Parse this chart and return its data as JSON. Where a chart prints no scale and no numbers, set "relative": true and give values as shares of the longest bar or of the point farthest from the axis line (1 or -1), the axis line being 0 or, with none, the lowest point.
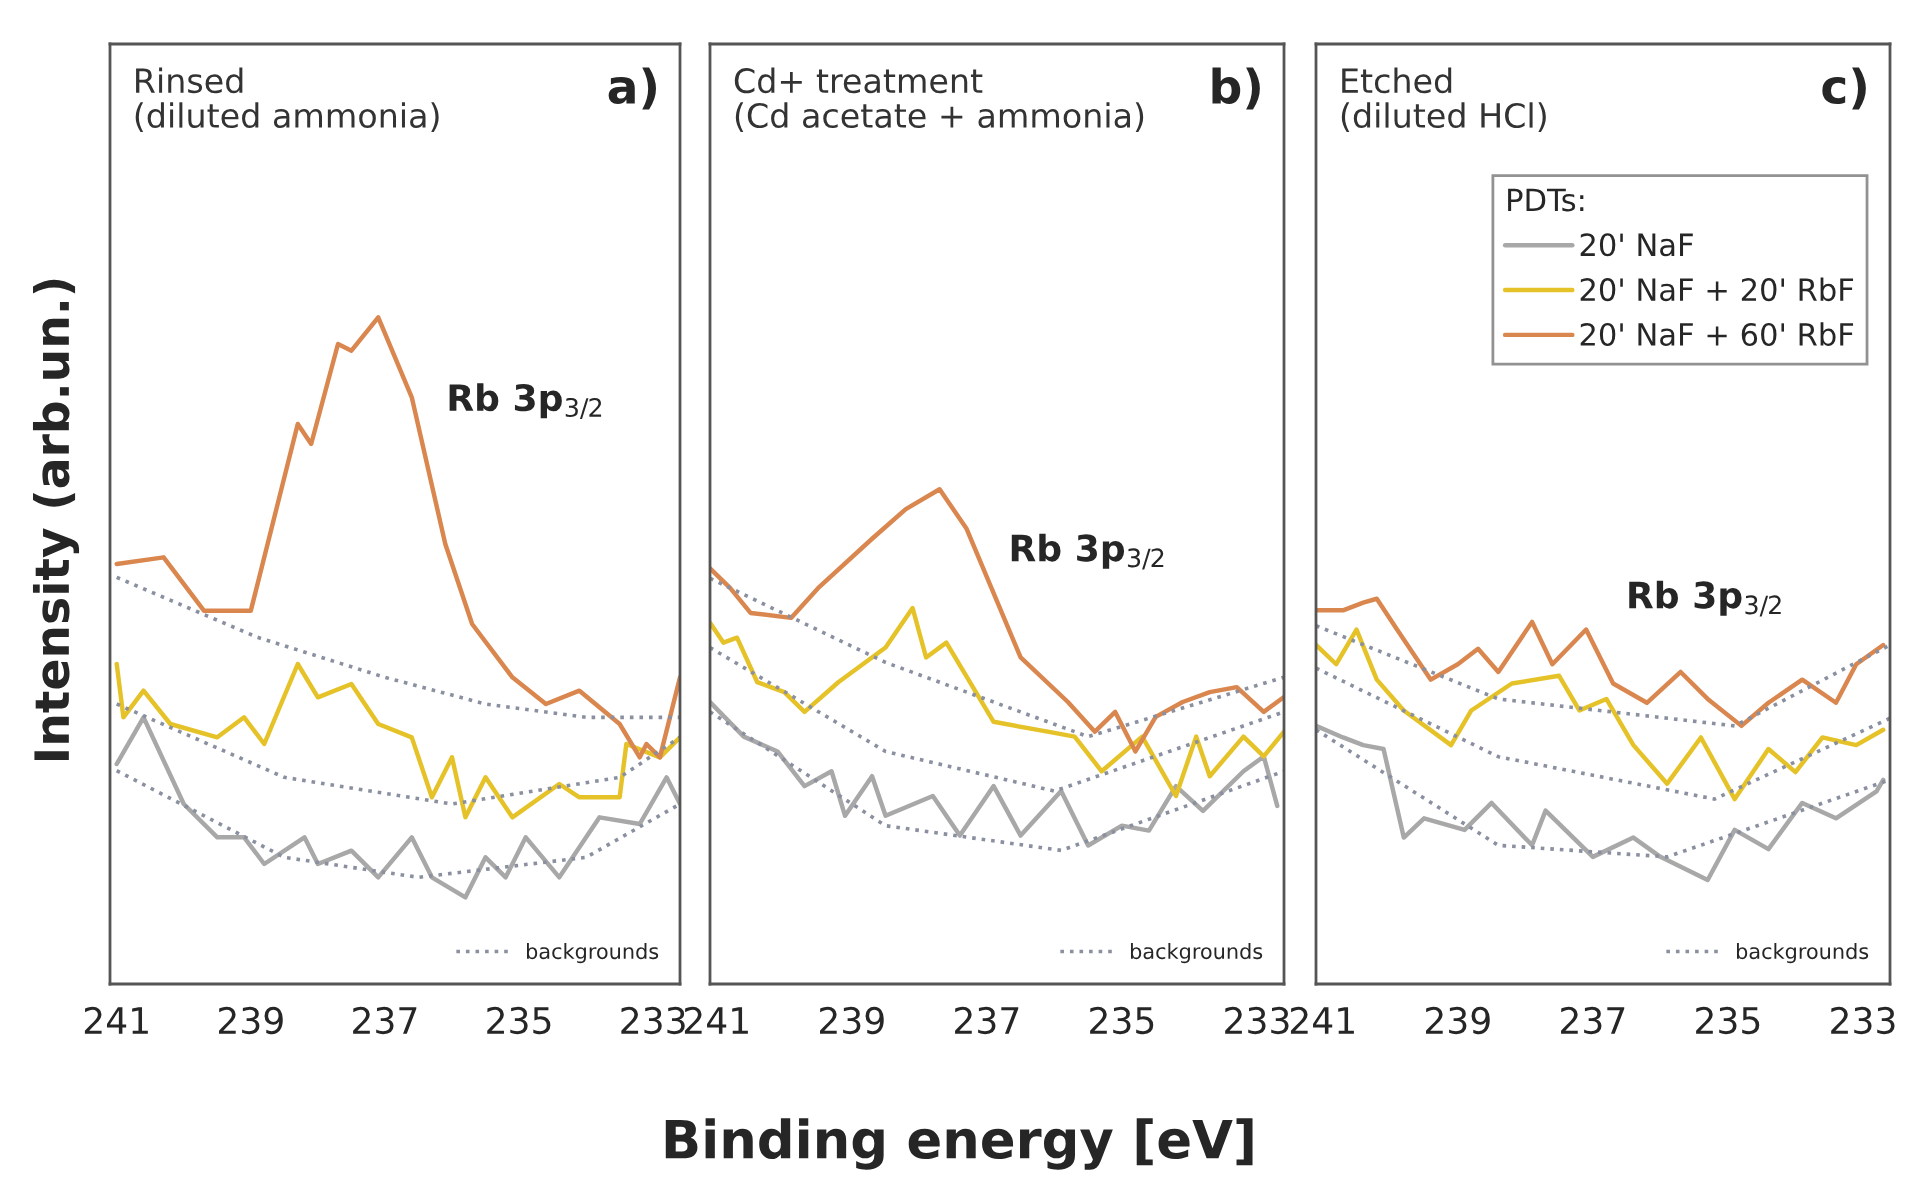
{
  "chart_data": [
    {
      "type": "line",
      "relative": true,
      "xlabel": "Binding energy [eV]",
      "ylabel": "Intensity (arb.un.)",
      "xlim": [
        241.1,
        232.6
      ],
      "xticks": [
        241,
        239,
        237,
        235,
        233
      ],
      "grid": false,
      "legend": "bottom right",
      "annotations": [
        "Rinsed\n(diluted ammonia)",
        "a)",
        "Rb 3p$_{3/2}$"
      ],
      "series": [
        {
          "color": "#a8a8a8",
          "line_style": "solid",
          "x": [
            241.0,
            240.6,
            240.0,
            239.5,
            239.1,
            238.8,
            238.2,
            238.0,
            237.5,
            237.1,
            236.6,
            236.3,
            235.8,
            235.5,
            235.2,
            234.9,
            234.4,
            233.8,
            233.2,
            232.8,
            232.6
          ],
          "values": [
            0.33,
            0.4,
            0.27,
            0.22,
            0.22,
            0.18,
            0.22,
            0.18,
            0.2,
            0.16,
            0.22,
            0.16,
            0.13,
            0.19,
            0.16,
            0.22,
            0.16,
            0.25,
            0.24,
            0.31,
            0.27
          ]
        },
        {
          "color": "#e6c229",
          "line_style": "solid",
          "x": [
            241.0,
            240.9,
            240.6,
            240.2,
            239.5,
            239.1,
            238.8,
            238.3,
            238.0,
            237.5,
            237.1,
            236.6,
            236.3,
            236.0,
            235.8,
            235.5,
            235.1,
            234.4,
            234.1,
            233.5,
            233.4,
            232.9,
            232.6
          ],
          "values": [
            0.48,
            0.4,
            0.44,
            0.39,
            0.37,
            0.4,
            0.36,
            0.48,
            0.43,
            0.45,
            0.39,
            0.37,
            0.28,
            0.34,
            0.25,
            0.31,
            0.25,
            0.3,
            0.28,
            0.28,
            0.36,
            0.34,
            0.37
          ]
        },
        {
          "color": "#d9874f",
          "line_style": "solid",
          "x": [
            241.0,
            240.3,
            239.7,
            239.0,
            238.3,
            238.1,
            237.7,
            237.5,
            237.1,
            236.6,
            236.1,
            235.7,
            235.1,
            234.6,
            234.1,
            233.5,
            233.2,
            233.1,
            232.9,
            232.6
          ],
          "values": [
            0.63,
            0.64,
            0.56,
            0.56,
            0.84,
            0.81,
            0.96,
            0.95,
            1.0,
            0.88,
            0.66,
            0.54,
            0.46,
            0.42,
            0.44,
            0.39,
            0.34,
            0.36,
            0.34,
            0.46
          ]
        },
        {
          "name": "backgrounds",
          "color": "#8a90a0",
          "line_style": "dotted",
          "x": [
            241.0,
            238.9,
            237.0,
            235.5,
            234.0,
            232.6
          ],
          "values": [
            0.61,
            0.52,
            0.46,
            0.42,
            0.4,
            0.4
          ]
        },
        {
          "color": "#8a90a0",
          "line_style": "dotted",
          "x": [
            241.0,
            238.5,
            236.0,
            233.5,
            232.6
          ],
          "values": [
            0.42,
            0.31,
            0.27,
            0.31,
            0.37
          ]
        },
        {
          "color": "#8a90a0",
          "line_style": "dotted",
          "x": [
            241.0,
            238.5,
            236.5,
            234.0,
            232.6
          ],
          "values": [
            0.32,
            0.19,
            0.16,
            0.19,
            0.27
          ]
        }
      ]
    },
    {
      "type": "line",
      "relative": true,
      "xlim": [
        241.1,
        232.6
      ],
      "xticks": [
        241,
        239,
        237,
        235,
        233
      ],
      "grid": false,
      "legend": "bottom right",
      "annotations": [
        "Cd+ treatment\n(Cd acetate + ammonia)",
        "b)",
        "Rb 3p$_{3/2}$"
      ],
      "series": [
        {
          "color": "#a8a8a8",
          "line_style": "solid",
          "x": [
            241.1,
            240.6,
            240.1,
            239.7,
            239.3,
            239.1,
            238.7,
            238.5,
            237.8,
            237.4,
            236.9,
            236.5,
            235.9,
            235.5,
            235.0,
            234.6,
            234.2,
            233.8,
            233.2,
            232.9,
            232.7
          ],
          "values": [
            0.57,
            0.5,
            0.47,
            0.4,
            0.43,
            0.34,
            0.42,
            0.34,
            0.38,
            0.3,
            0.4,
            0.3,
            0.39,
            0.28,
            0.32,
            0.31,
            0.4,
            0.35,
            0.43,
            0.46,
            0.36
          ]
        },
        {
          "color": "#e6c229",
          "line_style": "solid",
          "x": [
            241.1,
            240.9,
            240.7,
            240.4,
            240.0,
            239.7,
            239.2,
            238.5,
            238.1,
            237.9,
            237.6,
            236.9,
            236.1,
            235.7,
            235.3,
            234.7,
            234.2,
            233.9,
            233.7,
            233.2,
            232.9,
            232.6
          ],
          "values": [
            0.73,
            0.69,
            0.7,
            0.61,
            0.59,
            0.55,
            0.61,
            0.68,
            0.76,
            0.66,
            0.69,
            0.53,
            0.51,
            0.5,
            0.43,
            0.5,
            0.38,
            0.5,
            0.42,
            0.5,
            0.46,
            0.51
          ]
        },
        {
          "color": "#d9874f",
          "line_style": "solid",
          "x": [
            241.1,
            240.8,
            240.5,
            239.9,
            239.5,
            238.7,
            238.2,
            237.7,
            237.3,
            236.5,
            235.8,
            235.4,
            235.1,
            234.8,
            234.5,
            234.1,
            233.7,
            233.3,
            232.9,
            232.6
          ],
          "values": [
            0.84,
            0.8,
            0.75,
            0.74,
            0.8,
            0.9,
            0.96,
            1.0,
            0.92,
            0.66,
            0.57,
            0.51,
            0.55,
            0.47,
            0.54,
            0.57,
            0.59,
            0.6,
            0.55,
            0.58
          ]
        },
        {
          "name": "backgrounds",
          "color": "#8a90a0",
          "line_style": "dotted",
          "x": [
            241.1,
            238.5,
            235.5,
            232.6
          ],
          "values": [
            0.82,
            0.65,
            0.5,
            0.62
          ]
        },
        {
          "color": "#8a90a0",
          "line_style": "dotted",
          "x": [
            241.1,
            238.5,
            236.0,
            232.6
          ],
          "values": [
            0.68,
            0.47,
            0.39,
            0.55
          ]
        },
        {
          "color": "#8a90a0",
          "line_style": "dotted",
          "x": [
            241.1,
            238.5,
            235.9,
            232.6
          ],
          "values": [
            0.55,
            0.32,
            0.27,
            0.43
          ]
        }
      ]
    },
    {
      "type": "line",
      "relative": true,
      "xlim": [
        241.1,
        232.6
      ],
      "xticks": [
        241,
        239,
        237,
        235,
        233
      ],
      "grid": false,
      "legend": "top right",
      "legend_title": "PDTs:",
      "annotations": [
        "Etched\n(diluted HCl)",
        "c)",
        "Rb 3p$_{3/2}$"
      ],
      "series": [
        {
          "name": "20' NaF",
          "color": "#a8a8a8",
          "line_style": "solid",
          "x": [
            241.1,
            240.7,
            240.4,
            240.1,
            239.8,
            239.5,
            238.9,
            238.5,
            237.9,
            237.7,
            237.0,
            236.4,
            236.0,
            235.3,
            234.9,
            234.4,
            233.9,
            233.4,
            232.8,
            232.7
          ],
          "values": [
            0.67,
            0.64,
            0.62,
            0.61,
            0.38,
            0.43,
            0.4,
            0.47,
            0.36,
            0.45,
            0.33,
            0.38,
            0.33,
            0.27,
            0.4,
            0.35,
            0.47,
            0.43,
            0.5,
            0.53
          ]
        },
        {
          "name": "20' NaF + 20' RbF",
          "color": "#e6c229",
          "line_style": "solid",
          "x": [
            241.1,
            240.8,
            240.5,
            240.2,
            239.8,
            239.1,
            238.8,
            238.2,
            237.5,
            237.2,
            236.8,
            236.4,
            235.9,
            235.4,
            234.9,
            234.4,
            234.0,
            233.6,
            233.1,
            232.7
          ],
          "values": [
            0.88,
            0.83,
            0.92,
            0.79,
            0.71,
            0.62,
            0.71,
            0.78,
            0.8,
            0.71,
            0.74,
            0.62,
            0.52,
            0.64,
            0.48,
            0.61,
            0.55,
            0.64,
            0.62,
            0.66
          ]
        },
        {
          "name": "20' NaF + 60' RbF",
          "color": "#d9874f",
          "line_style": "solid",
          "x": [
            241.1,
            240.7,
            240.4,
            240.2,
            239.9,
            239.4,
            239.0,
            238.7,
            238.4,
            237.9,
            237.6,
            237.1,
            236.7,
            236.2,
            235.7,
            235.3,
            234.8,
            234.4,
            233.9,
            233.4,
            233.1,
            232.7
          ],
          "values": [
            0.97,
            0.97,
            0.99,
            1.0,
            0.92,
            0.79,
            0.83,
            0.87,
            0.81,
            0.94,
            0.83,
            0.92,
            0.78,
            0.73,
            0.81,
            0.74,
            0.67,
            0.73,
            0.79,
            0.73,
            0.83,
            0.88
          ]
        },
        {
          "name": "backgrounds",
          "color": "#8a90a0",
          "line_style": "dotted",
          "x": [
            241.1,
            238.4,
            234.9,
            232.6
          ],
          "values": [
            0.93,
            0.74,
            0.67,
            0.88
          ]
        },
        {
          "color": "#8a90a0",
          "line_style": "dotted",
          "x": [
            241.1,
            238.4,
            235.2,
            232.6
          ],
          "values": [
            0.82,
            0.59,
            0.48,
            0.69
          ]
        },
        {
          "color": "#8a90a0",
          "line_style": "dotted",
          "x": [
            241.1,
            238.4,
            235.9,
            232.6
          ],
          "values": [
            0.66,
            0.36,
            0.33,
            0.53
          ]
        }
      ]
    }
  ]
}
